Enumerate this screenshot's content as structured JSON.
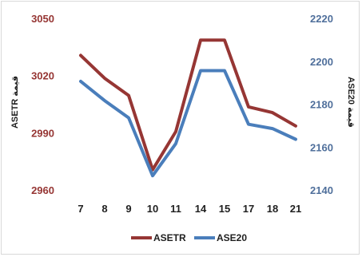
{
  "chart_data": {
    "type": "line",
    "categories": [
      "7",
      "8",
      "9",
      "10",
      "11",
      "14",
      "15",
      "17",
      "18",
      "21"
    ],
    "series": [
      {
        "name": "ASETR",
        "axis": "left",
        "color": "#963634",
        "values": [
          3031,
          3019,
          3010,
          2971,
          2991,
          3039,
          3039,
          3004,
          3001,
          2994
        ]
      },
      {
        "name": "ASE20",
        "axis": "right",
        "color": "#4a7ebb",
        "values": [
          2191,
          2182,
          2174,
          2147,
          2162,
          2196,
          2196,
          2171,
          2169,
          2164
        ]
      }
    ],
    "y_left": {
      "label": "ASETR قيمة",
      "ticks": [
        "2960",
        "2990",
        "3020",
        "3050"
      ],
      "range": [
        2960,
        3050
      ]
    },
    "y_right": {
      "label": "ASE20 قيمة",
      "ticks": [
        "2140",
        "2160",
        "2180",
        "2200",
        "2220"
      ],
      "range": [
        2140,
        2220
      ]
    },
    "grid": false,
    "legend_position": "bottom"
  }
}
